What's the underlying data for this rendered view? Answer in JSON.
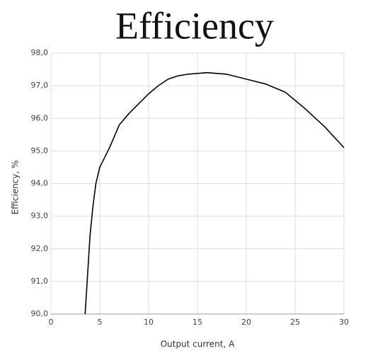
{
  "chart_data": {
    "type": "line",
    "title": "Efficiency",
    "x_label": "Output current, A",
    "y_label": "Efficiency, %",
    "x": [
      3.5,
      4,
      4.3,
      4.6,
      5,
      6,
      7,
      8,
      9,
      10,
      11,
      12,
      13,
      14,
      16,
      18,
      20,
      22,
      24,
      26,
      28,
      30
    ],
    "series": [
      {
        "name": "Efficiency",
        "color": "#000000",
        "values": [
          90.0,
          92.4,
          93.3,
          94.0,
          94.5,
          95.1,
          95.8,
          96.15,
          96.45,
          96.75,
          97.0,
          97.2,
          97.3,
          97.35,
          97.4,
          97.35,
          97.2,
          97.05,
          96.8,
          96.3,
          95.75,
          95.1
        ]
      }
    ],
    "xlim": [
      0,
      30
    ],
    "xticks": [
      0,
      5,
      10,
      15,
      20,
      25,
      30
    ],
    "ylim": [
      90,
      98
    ],
    "yticks": [
      {
        "value": 90,
        "label": "90,0"
      },
      {
        "value": 91,
        "label": "91,0"
      },
      {
        "value": 92,
        "label": "92,0"
      },
      {
        "value": 93,
        "label": "93,0"
      },
      {
        "value": 94,
        "label": "94,0"
      },
      {
        "value": 95,
        "label": "95,0"
      },
      {
        "value": 96,
        "label": "96,0"
      },
      {
        "value": 97,
        "label": "97,0"
      },
      {
        "value": 98,
        "label": "98,0"
      }
    ],
    "grid": true
  }
}
